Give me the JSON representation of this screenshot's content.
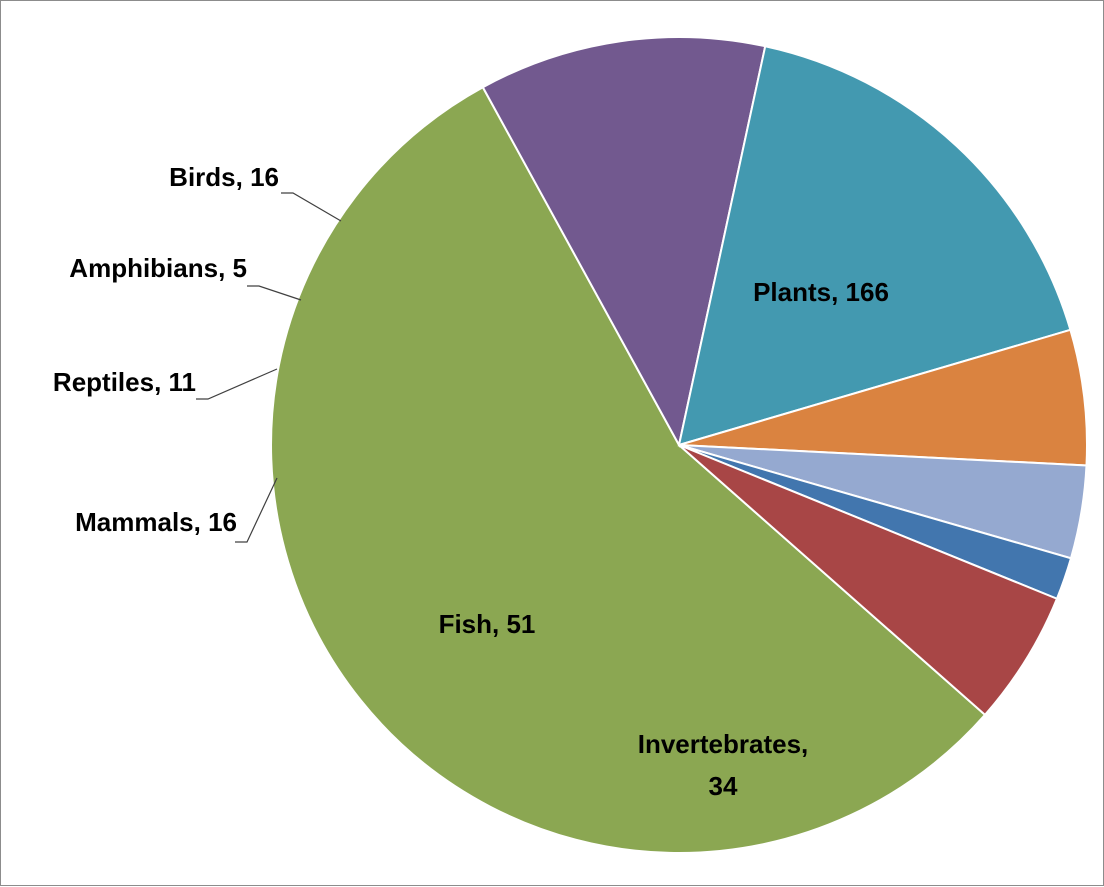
{
  "chart_data": {
    "type": "pie",
    "title": "",
    "start_angle_deg": 131.4,
    "direction": "clockwise",
    "slices": [
      {
        "name": "Plants",
        "value": 166,
        "label_text": "Plants, 166",
        "color": "#8BA752"
      },
      {
        "name": "Invertebrates",
        "value": 34,
        "label_text": "Invertebrates, 34",
        "color": "#72598F"
      },
      {
        "name": "Fish",
        "value": 51,
        "label_text": "Fish, 51",
        "color": "#4399B0"
      },
      {
        "name": "Mammals",
        "value": 16,
        "label_text": "Mammals, 16",
        "color": "#DA8340"
      },
      {
        "name": "Reptiles",
        "value": 11,
        "label_text": "Reptiles, 11",
        "color": "#95A9D0"
      },
      {
        "name": "Amphibians",
        "value": 5,
        "label_text": "Amphibians, 5",
        "color": "#4276AE"
      },
      {
        "name": "Birds",
        "value": 16,
        "label_text": "Birds, 16",
        "color": "#A84646"
      }
    ],
    "legend": "none"
  }
}
